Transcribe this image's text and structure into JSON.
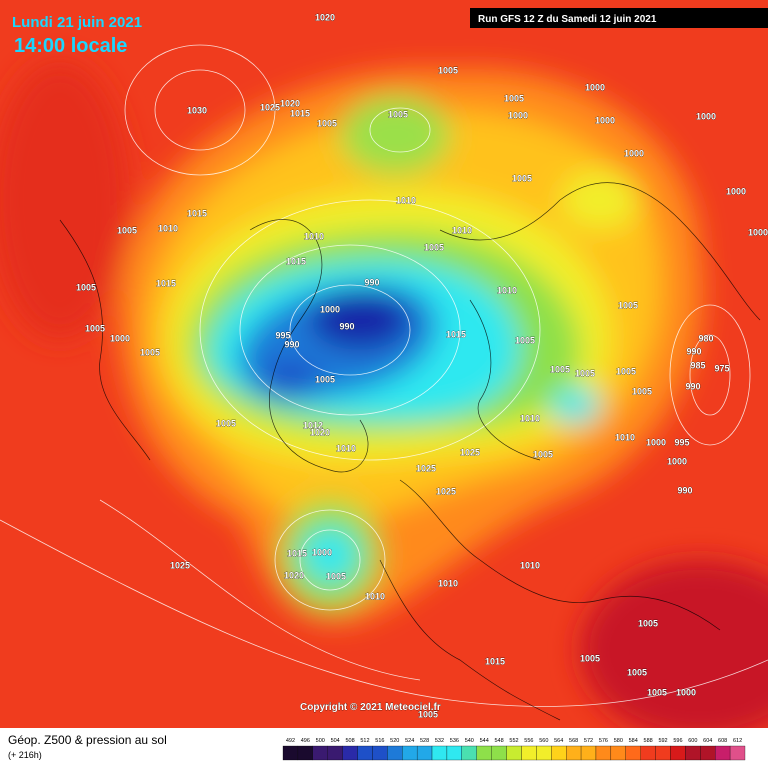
{
  "header": {
    "date": "Lundi 21 juin 2021",
    "time": "14:00 locale",
    "run": "Run GFS 12 Z du Samedi 12 juin 2021"
  },
  "copyright": "Copyright © 2021 Meteociel.fr",
  "footer": {
    "title": "Géop. Z500 & pression au sol",
    "subtitle": "(+ 216h)"
  },
  "colorbar_labels": [
    492,
    496,
    500,
    504,
    508,
    512,
    516,
    520,
    524,
    528,
    532,
    536,
    540,
    544,
    548,
    552,
    556,
    560,
    564,
    568,
    572,
    576,
    580,
    584,
    588,
    592,
    596,
    600,
    604,
    608,
    612
  ],
  "isobar_labels": [
    1020,
    1030,
    1025,
    1020,
    1015,
    1005,
    1005,
    1005,
    1005,
    1000,
    1000,
    1000,
    1000,
    1000,
    1000,
    1005,
    1010,
    1015,
    1005,
    1010,
    1010,
    1005,
    1010,
    1000,
    1015,
    990,
    1010,
    1005,
    1015,
    1000,
    990,
    1005,
    1005,
    1000,
    995,
    990,
    1015,
    1005,
    980,
    990,
    1005,
    985,
    975,
    1005,
    1005,
    1005,
    1005,
    990,
    1005,
    1005,
    1012,
    1020,
    1010,
    1010,
    1000,
    995,
    1010,
    1025,
    1025,
    1005,
    1000,
    1025,
    990,
    1015,
    1000,
    1005,
    1020,
    1025,
    1010,
    1010,
    1010,
    1005,
    1015,
    1005,
    1005,
    1000,
    1005,
    1005
  ]
}
